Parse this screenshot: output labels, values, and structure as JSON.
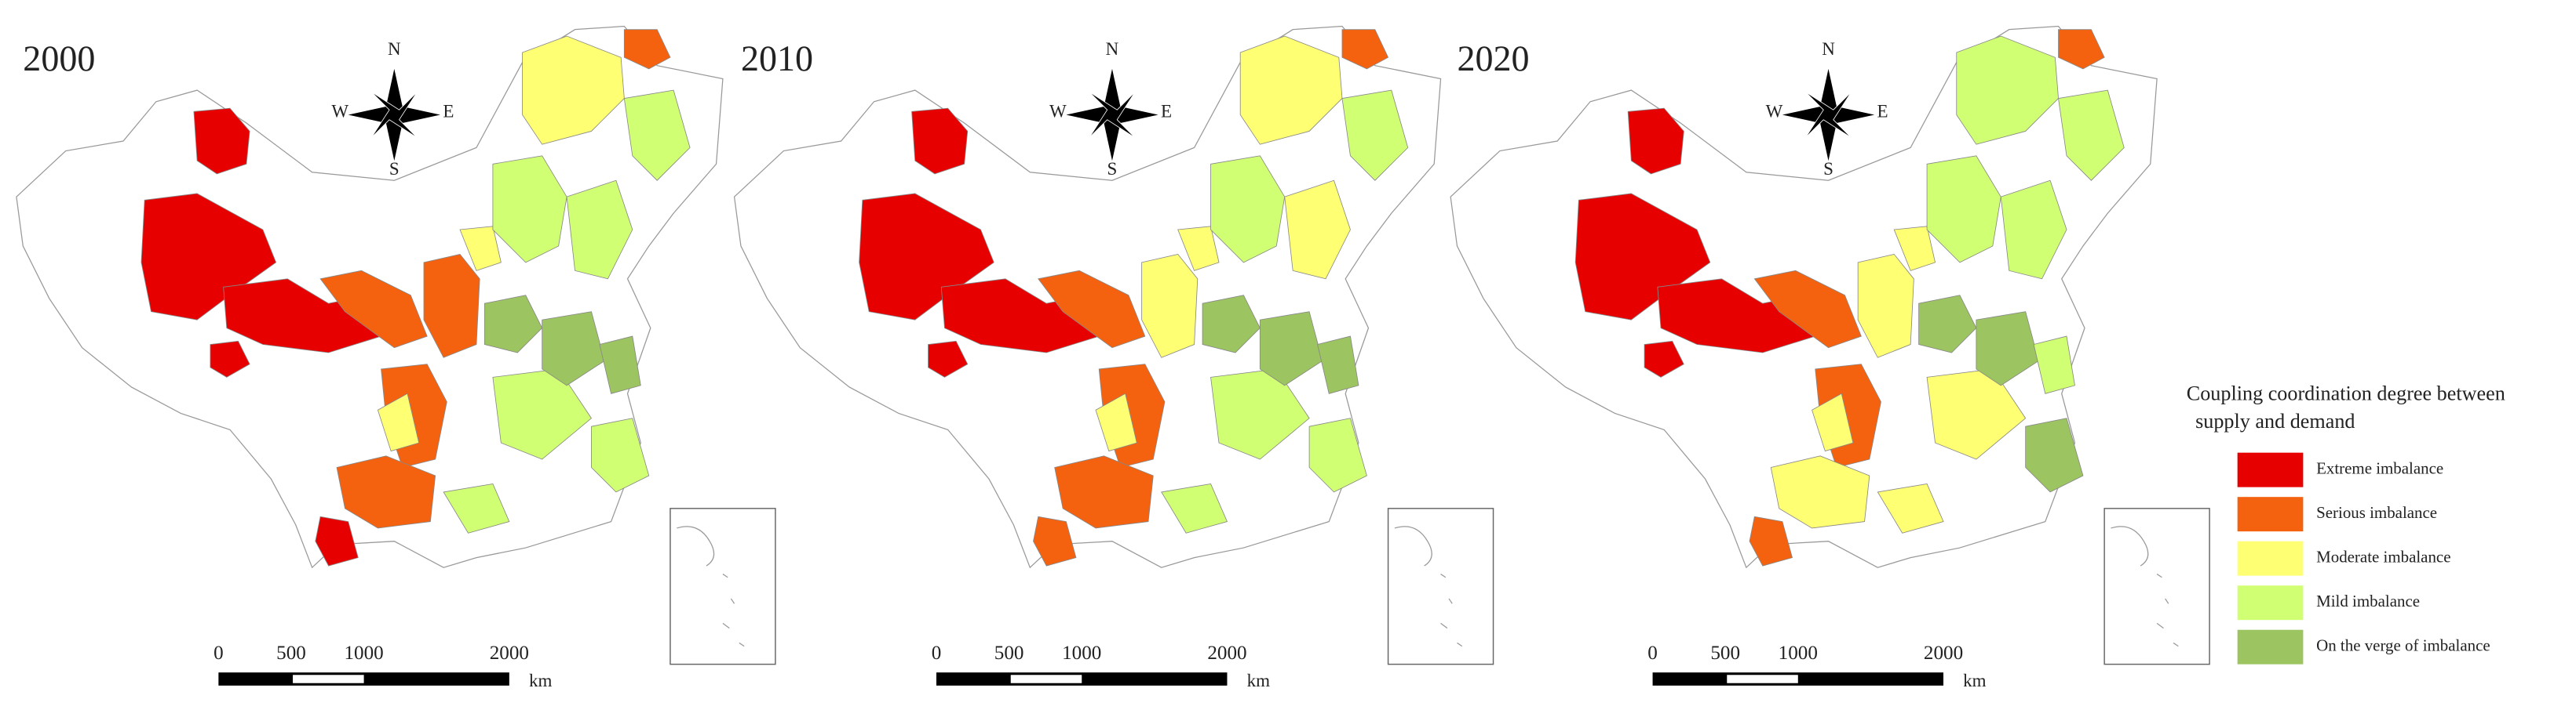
{
  "panels": [
    {
      "year": "2000",
      "compass": {
        "n": "N",
        "s": "S",
        "w": "W",
        "e": "E"
      },
      "scale": {
        "labels": [
          0,
          500,
          1000,
          2000
        ],
        "unit": "km"
      }
    },
    {
      "year": "2010",
      "compass": {
        "n": "N",
        "s": "S",
        "w": "W",
        "e": "E"
      },
      "scale": {
        "labels": [
          0,
          500,
          1000,
          2000
        ],
        "unit": "km"
      }
    },
    {
      "year": "2020",
      "compass": {
        "n": "N",
        "s": "S",
        "w": "W",
        "e": "E"
      },
      "scale": {
        "labels": [
          0,
          500,
          1000,
          2000
        ],
        "unit": "km"
      }
    }
  ],
  "legend": {
    "title_line1": "Coupling coordination degree between",
    "title_line2": "supply and demand",
    "items": [
      {
        "label": "Extreme imbalance",
        "color": "#e60000"
      },
      {
        "label": "Serious imbalance",
        "color": "#f5620f"
      },
      {
        "label": "Moderate imbalance",
        "color": "#ffff73"
      },
      {
        "label": "Mild imbalance",
        "color": "#d1ff73"
      },
      {
        "label": "On the verge of imbalance",
        "color": "#9cc460"
      }
    ]
  }
}
